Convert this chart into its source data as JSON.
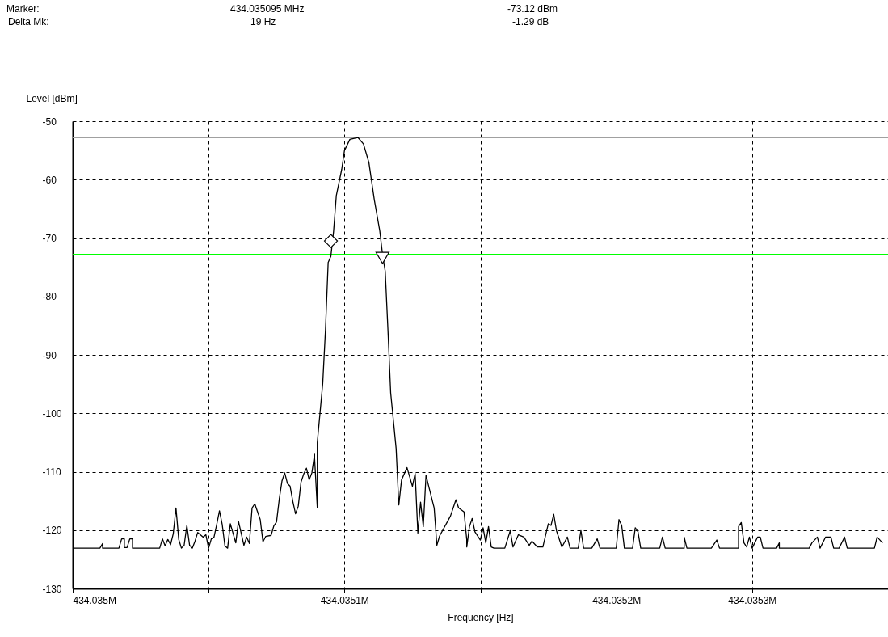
{
  "chart_data": {
    "type": "line",
    "xlabel": "Frequency [Hz]",
    "ylabel": "Level [dBm]",
    "annotations": [
      "Marker:",
      "434.035095 MHz",
      "-73.12 dBm",
      "Delta Mk:",
      "19 Hz",
      "-1.29 dB"
    ],
    "xlim": [
      434035000,
      434035300
    ],
    "xticks": [
      {
        "value": 434035000,
        "label": "434.035M"
      },
      {
        "value": 434035050,
        "label": null
      },
      {
        "value": 434035100,
        "label": "434.0351M"
      },
      {
        "value": 434035150,
        "label": null
      },
      {
        "value": 434035200,
        "label": "434.0352M"
      },
      {
        "value": 434035250,
        "label": "434.0353M"
      }
    ],
    "ylim": [
      -130,
      -50
    ],
    "yticks": [
      -130,
      -120,
      -110,
      -100,
      -90,
      -80,
      -70,
      -60,
      -50
    ],
    "grid": true,
    "ref_lines": [
      {
        "axis": "y",
        "value": -52.8,
        "color": "#a0a0a0"
      },
      {
        "axis": "y",
        "value": -72.8,
        "color": "#00ff00"
      }
    ],
    "series": [
      {
        "color": "#000000",
        "x": [
          434035000,
          434035010,
          434035011,
          434035011,
          434035017,
          434035018,
          434035019,
          434035019,
          434035020,
          434035021,
          434035022,
          434035022,
          434035032,
          434035033,
          434035034,
          434035035,
          434035036,
          434035037,
          434035038,
          434035039,
          434035040,
          434035041,
          434035042,
          434035043,
          434035044,
          434035045,
          434035046,
          434035048,
          434035049,
          434035050,
          434035051,
          434035052,
          434035053,
          434035054,
          434035055,
          434035056,
          434035057,
          434035058,
          434035060,
          434035061,
          434035063,
          434035064,
          434035065,
          434035066,
          434035067,
          434035069,
          434035070,
          434035071,
          434035073,
          434035074,
          434035075,
          434035076,
          434035077,
          434035078,
          434035079,
          434035080,
          434035081,
          434035082,
          434035083,
          434035084,
          434035085,
          434035086,
          434035087,
          434035088,
          434035089,
          434035089,
          434035090,
          434035090,
          434035092,
          434035093,
          434035094,
          434035095,
          434035096,
          434035097,
          434035099,
          434035100,
          434035102,
          434035105,
          434035107,
          434035109,
          434035111,
          434035113,
          434035114,
          434035115,
          434035116,
          434035117,
          434035119,
          434035120,
          434035121,
          434035123,
          434035125,
          434035126,
          434035127,
          434035128,
          434035129,
          434035130,
          434035131,
          434035133,
          434035134,
          434035135,
          434035139,
          434035141,
          434035142,
          434035144,
          434035145,
          434035145,
          434035146,
          434035147,
          434035148,
          434035150,
          434035151,
          434035152,
          434035153,
          434035154,
          434035155,
          434035159,
          434035161,
          434035162,
          434035164,
          434035166,
          434035168,
          434035169,
          434035171,
          434035173,
          434035175,
          434035176,
          434035177,
          434035178,
          434035180,
          434035182,
          434035183,
          434035186,
          434035187,
          434035188,
          434035191,
          434035193,
          434035194,
          434035200,
          434035201,
          434035202,
          434035203,
          434035206,
          434035207,
          434035208,
          434035209,
          434035216,
          434035217,
          434035218,
          434035225,
          434035225,
          434035226,
          434035235,
          434035237,
          434035238,
          434035245,
          434035245,
          434035246,
          434035247,
          434035248,
          434035249,
          434035250,
          434035252,
          434035253,
          434035254,
          434035259,
          434035260,
          434035260,
          434035271,
          434035272,
          434035274,
          434035275,
          434035277,
          434035279,
          434035280,
          434035282,
          434035284,
          434035285,
          434035295,
          434035296,
          434035298
        ],
        "values": [
          -123.1,
          -123.1,
          -122.3,
          -123.1,
          -123.1,
          -121.5,
          -121.5,
          -123,
          -123,
          -121.5,
          -121.5,
          -123.1,
          -123.1,
          -121.5,
          -122.7,
          -121.6,
          -122.5,
          -120.6,
          -116.2,
          -121.6,
          -123.1,
          -122.6,
          -119.2,
          -122.6,
          -123.1,
          -121.9,
          -120.4,
          -121.2,
          -120.8,
          -123.1,
          -121.5,
          -121.2,
          -119,
          -116.7,
          -119,
          -122.7,
          -123.1,
          -118.9,
          -122.2,
          -118.5,
          -122.6,
          -121.2,
          -122.3,
          -116.2,
          -115.5,
          -118.2,
          -122,
          -121.1,
          -120.9,
          -119.3,
          -118.6,
          -114.7,
          -111.6,
          -110.2,
          -112,
          -112.5,
          -115.1,
          -117.2,
          -115.9,
          -111.8,
          -110.4,
          -109.4,
          -111.4,
          -110.2,
          -107,
          -107.7,
          -116.2,
          -105,
          -94.9,
          -85.8,
          -74.2,
          -73.1,
          -68.8,
          -62.7,
          -58.2,
          -55,
          -53.1,
          -52.8,
          -53.9,
          -57.1,
          -63.5,
          -68.8,
          -72.8,
          -75.7,
          -85.8,
          -96.5,
          -106,
          -115.7,
          -111.4,
          -109.3,
          -112.5,
          -110.3,
          -120.5,
          -115.2,
          -119.4,
          -110.6,
          -112.5,
          -116.2,
          -122.6,
          -121,
          -117.6,
          -114.8,
          -116.2,
          -116.9,
          -121.7,
          -122.9,
          -119.4,
          -118,
          -120.3,
          -121.7,
          -119.6,
          -122.2,
          -119.4,
          -122.9,
          -123.1,
          -123.1,
          -120.1,
          -122.9,
          -120.8,
          -121.2,
          -122.6,
          -121.9,
          -122.9,
          -122.9,
          -118.9,
          -119.2,
          -117.3,
          -120.1,
          -122.9,
          -121.2,
          -123.1,
          -123.1,
          -120.1,
          -123.1,
          -123.1,
          -121.5,
          -123.1,
          -123.1,
          -118.2,
          -119.2,
          -123.1,
          -123.1,
          -119.6,
          -120.3,
          -123.1,
          -123.1,
          -121.2,
          -123.1,
          -123.1,
          -121.2,
          -123.1,
          -123.1,
          -121.7,
          -123.1,
          -123.1,
          -119.4,
          -118.7,
          -122.2,
          -122.9,
          -121.2,
          -123.1,
          -121.2,
          -121.2,
          -123.1,
          -123.1,
          -122.2,
          -123.1,
          -123.1,
          -122.2,
          -121.2,
          -123.1,
          -121.2,
          -121.2,
          -123.1,
          -123.1,
          -121.2,
          -123.1,
          -123.1,
          -121.2,
          -122.2
        ]
      },
      {
        "type": "scatter",
        "marker": "diamond",
        "color": "#000000",
        "x": [
          434035095
        ],
        "values": [
          -70.5
        ]
      },
      {
        "type": "scatter",
        "marker": "triangle",
        "color": "#000000",
        "x": [
          434035114
        ],
        "values": [
          -73.4
        ]
      }
    ]
  }
}
